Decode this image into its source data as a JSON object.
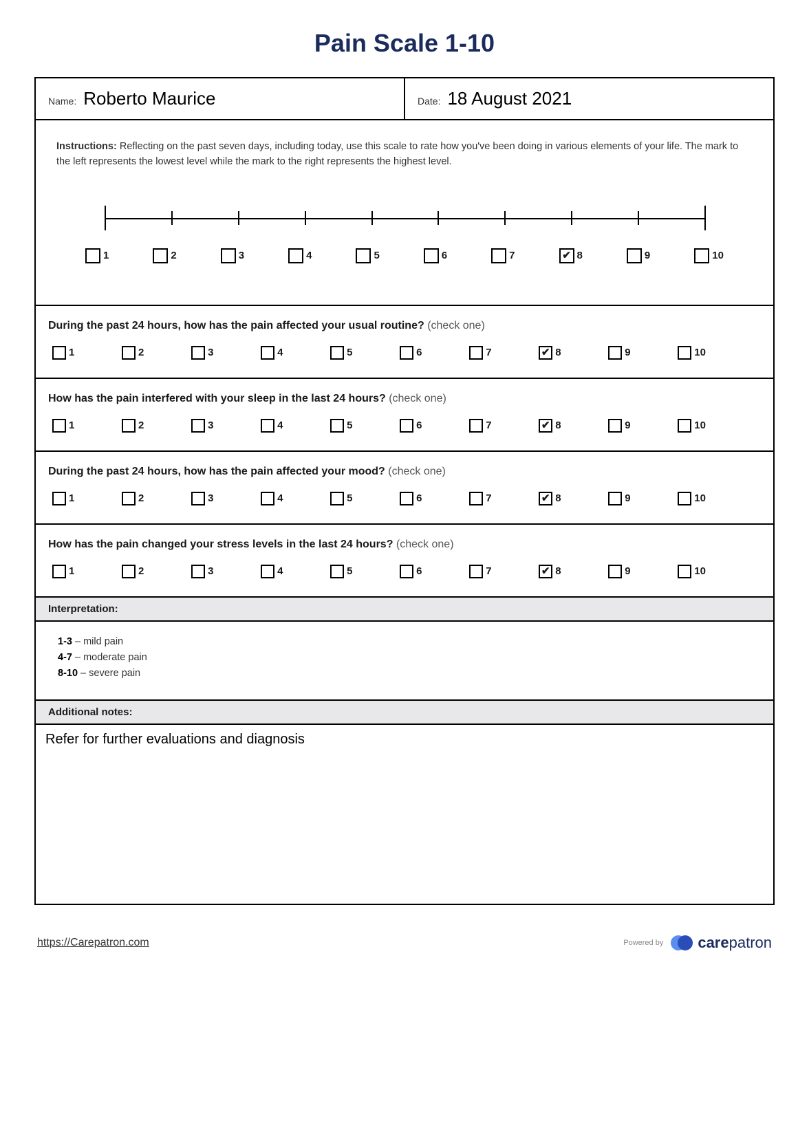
{
  "title": "Pain Scale 1-10",
  "header": {
    "name_label": "Name:",
    "name_value": "Roberto Maurice",
    "date_label": "Date:",
    "date_value": "18 August 2021"
  },
  "instructions": {
    "label": "Instructions:",
    "text": "Reflecting on the past seven days, including today, use this scale to rate how you've been doing in various elements of your life. The mark to the left represents the lowest level while the mark to the right represents the highest level."
  },
  "main_scale": {
    "options": [
      "1",
      "2",
      "3",
      "4",
      "5",
      "6",
      "7",
      "8",
      "9",
      "10"
    ],
    "selected": "8",
    "ruler_ticks": 10
  },
  "questions": [
    {
      "text": "During the past 24 hours, how has the pain affected your usual routine?",
      "hint": "(check one)",
      "options": [
        "1",
        "2",
        "3",
        "4",
        "5",
        "6",
        "7",
        "8",
        "9",
        "10"
      ],
      "selected": "8"
    },
    {
      "text": "How has the pain interfered with your sleep in the last 24 hours?",
      "hint": "(check one)",
      "options": [
        "1",
        "2",
        "3",
        "4",
        "5",
        "6",
        "7",
        "8",
        "9",
        "10"
      ],
      "selected": "8"
    },
    {
      "text": "During the past 24 hours, how has the pain affected your mood?",
      "hint": "(check one)",
      "options": [
        "1",
        "2",
        "3",
        "4",
        "5",
        "6",
        "7",
        "8",
        "9",
        "10"
      ],
      "selected": "8"
    },
    {
      "text": "How has the pain changed your stress levels in the last 24 hours?",
      "hint": "(check one)",
      "options": [
        "1",
        "2",
        "3",
        "4",
        "5",
        "6",
        "7",
        "8",
        "9",
        "10"
      ],
      "selected": "8"
    }
  ],
  "interpretation": {
    "header": "Interpretation:",
    "lines": [
      {
        "range": "1-3",
        "label": " – mild pain"
      },
      {
        "range": "4-7",
        "label": " – moderate pain"
      },
      {
        "range": "8-10",
        "label": " – severe pain"
      }
    ]
  },
  "notes": {
    "header": "Additional notes:",
    "text": "Refer for further evaluations and diagnosis"
  },
  "footer": {
    "link": "https://Carepatron.com",
    "powered": "Powered by",
    "brand_bold": "care",
    "brand_rest": "patron",
    "logo_colors": [
      "#5b8def",
      "#2a4db8"
    ]
  },
  "colors": {
    "title": "#1a2b5c",
    "border": "#000000",
    "section_bg": "#e8e8ea"
  }
}
